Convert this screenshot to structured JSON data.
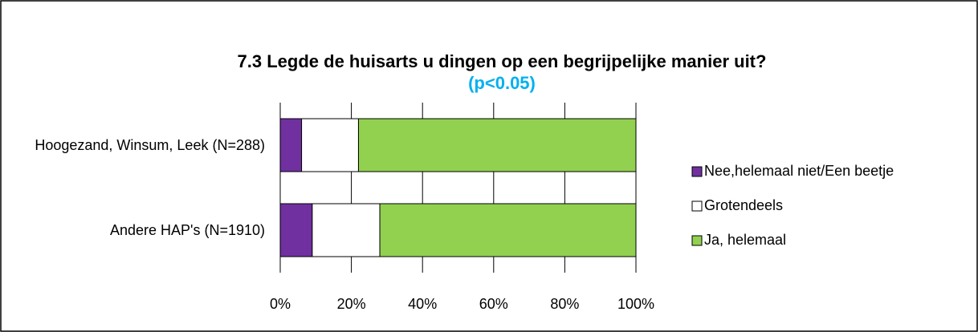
{
  "chart_data": {
    "type": "stacked_barh",
    "title": "7.3 Legde de huisarts u dingen op een begrijpelijke manier uit?",
    "subtitle": "(p<0.05)",
    "categories": [
      "Hoogezand, Winsum, Leek (N=288)",
      "Andere HAP's (N=1910)"
    ],
    "series": [
      {
        "name": "Nee,helemaal niet/Een beetje",
        "color": "#7030a0",
        "values": [
          6,
          9
        ]
      },
      {
        "name": "Grotendeels",
        "color": "#ffffff",
        "values": [
          16,
          19
        ]
      },
      {
        "name": "Ja, helemaal",
        "color": "#92d050",
        "values": [
          78,
          72
        ]
      }
    ],
    "xlim": [
      0,
      100
    ],
    "xticks": [
      {
        "value": 0,
        "label": "0%"
      },
      {
        "value": 20,
        "label": "20%"
      },
      {
        "value": 40,
        "label": "40%"
      },
      {
        "value": 60,
        "label": "60%"
      },
      {
        "value": 80,
        "label": "80%"
      },
      {
        "value": 100,
        "label": "100%"
      }
    ],
    "grid": true,
    "legend": "right"
  }
}
